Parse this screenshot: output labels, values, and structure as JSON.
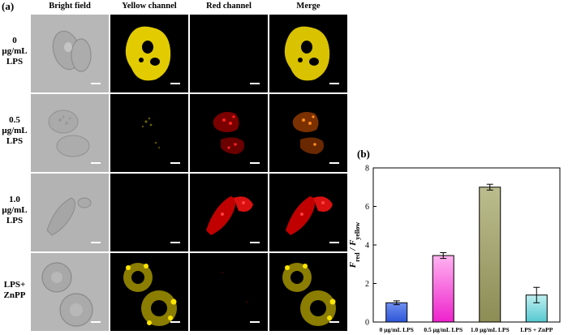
{
  "panel_a_label": "(a)",
  "panel_b_label": "(b)",
  "columns": [
    "Bright field",
    "Yellow channel",
    "Red channel",
    "Merge"
  ],
  "rows": [
    {
      "lines": [
        "0",
        "μg/mL",
        "LPS"
      ]
    },
    {
      "lines": [
        "0.5",
        "μg/mL",
        "LPS"
      ]
    },
    {
      "lines": [
        "1.0",
        "μg/mL",
        "LPS"
      ]
    },
    {
      "lines": [
        "LPS+",
        "ZnPP"
      ]
    }
  ],
  "colors": {
    "bright_bg": "#b5b5b5",
    "yellow": "#ffe600",
    "red": "#ff1a1a",
    "merge_orange": "#ff8a1a"
  },
  "chart_data": {
    "type": "bar",
    "categories": [
      "0 μg/mL LPS",
      "0.5 μg/mL LPS",
      "1.0 μg/mL LPS",
      "LPS + ZnPP"
    ],
    "values": [
      1.0,
      3.45,
      7.0,
      1.4
    ],
    "errors": [
      0.1,
      0.15,
      0.15,
      0.4
    ],
    "bar_colors": [
      [
        "#6f8ff0",
        "#2d55d8"
      ],
      [
        "#ffb3f0",
        "#ee22cc"
      ],
      [
        "#bcbd8e",
        "#8c8c55"
      ],
      [
        "#bff0f0",
        "#55c8d0"
      ]
    ],
    "ylim": [
      0,
      8
    ],
    "yticks": [
      "0",
      "2",
      "4",
      "6",
      "8"
    ],
    "ylabel_main": "F",
    "ylabel_sub1": "red",
    "ylabel_sep": " / ",
    "ylabel_sub2": "yellow"
  }
}
